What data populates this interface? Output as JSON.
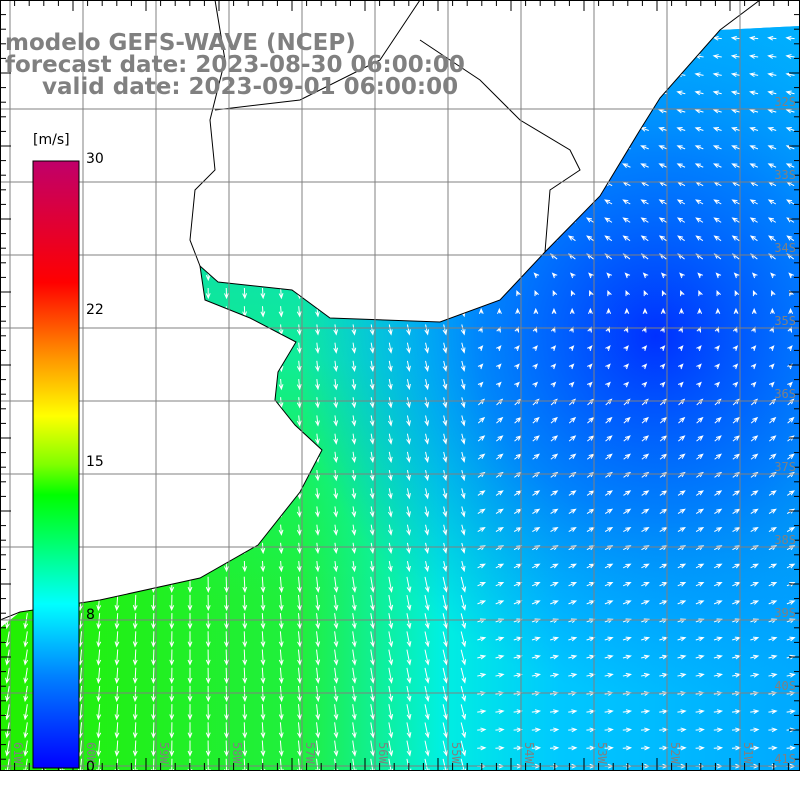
{
  "header": {
    "line1": "modelo GEFS-WAVE (NCEP)",
    "line2": "forecast date: 2023-08-30 06:00:00",
    "line3": "valid date: 2023-09-01 06:00:00"
  },
  "colorbar": {
    "unit": "[m/s]",
    "labels": [
      "30",
      "22",
      "15",
      "8",
      "0"
    ],
    "range": [
      0,
      30
    ],
    "colors": [
      "#0000ff",
      "#00a0ff",
      "#00ffff",
      "#00ff00",
      "#ffff00",
      "#ff8000",
      "#ff0000",
      "#c0006a"
    ]
  },
  "map": {
    "lat_labels": [
      "32S",
      "33S",
      "34S",
      "35S",
      "36S",
      "37S",
      "38S",
      "39S",
      "40S",
      "41S"
    ],
    "lon_labels": [
      "61W",
      "60W",
      "59W",
      "58W",
      "57W",
      "56W",
      "55W",
      "54W",
      "53W",
      "52W",
      "51W"
    ],
    "land_color": "#ffffff",
    "grid_color": "#808080"
  }
}
